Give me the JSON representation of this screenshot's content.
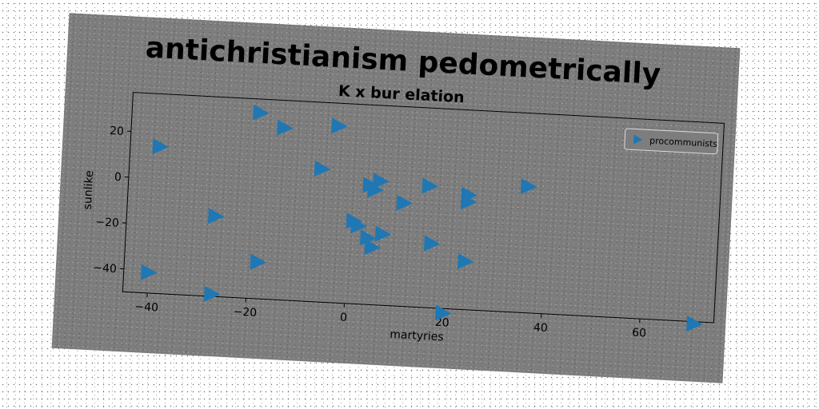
{
  "chart_data": {
    "type": "scatter",
    "title": "antichristianism pedometrically",
    "subtitle": "K x bur elation",
    "xlabel": "martyries",
    "ylabel": "sunlike",
    "xlim": [
      -45,
      75
    ],
    "ylim": [
      -50,
      37
    ],
    "xticks": [
      -40,
      -20,
      0,
      20,
      40,
      60
    ],
    "yticks": [
      20,
      0,
      -20,
      -40
    ],
    "legend_position": "top-right",
    "grid": false,
    "marker": "triangle-right",
    "series": [
      {
        "name": "procommunists",
        "color": "#1f77b4",
        "points": [
          [
            -39,
            14
          ],
          [
            -19,
            31
          ],
          [
            -14,
            25
          ],
          [
            -3,
            27
          ],
          [
            -6,
            8
          ],
          [
            -27,
            -15
          ],
          [
            -18,
            -34
          ],
          [
            -27,
            -49
          ],
          [
            -40,
            -41
          ],
          [
            4,
            2
          ],
          [
            6,
            4
          ],
          [
            5,
            0
          ],
          [
            11,
            -5
          ],
          [
            16,
            3
          ],
          [
            24,
            0
          ],
          [
            24,
            -3
          ],
          [
            36,
            5
          ],
          [
            2,
            -16
          ],
          [
            1,
            -14
          ],
          [
            4,
            -21
          ],
          [
            7,
            -19
          ],
          [
            5,
            -25
          ],
          [
            17,
            -22
          ],
          [
            24,
            -29
          ],
          [
            20,
            -52
          ],
          [
            71,
            -51
          ]
        ]
      }
    ]
  }
}
